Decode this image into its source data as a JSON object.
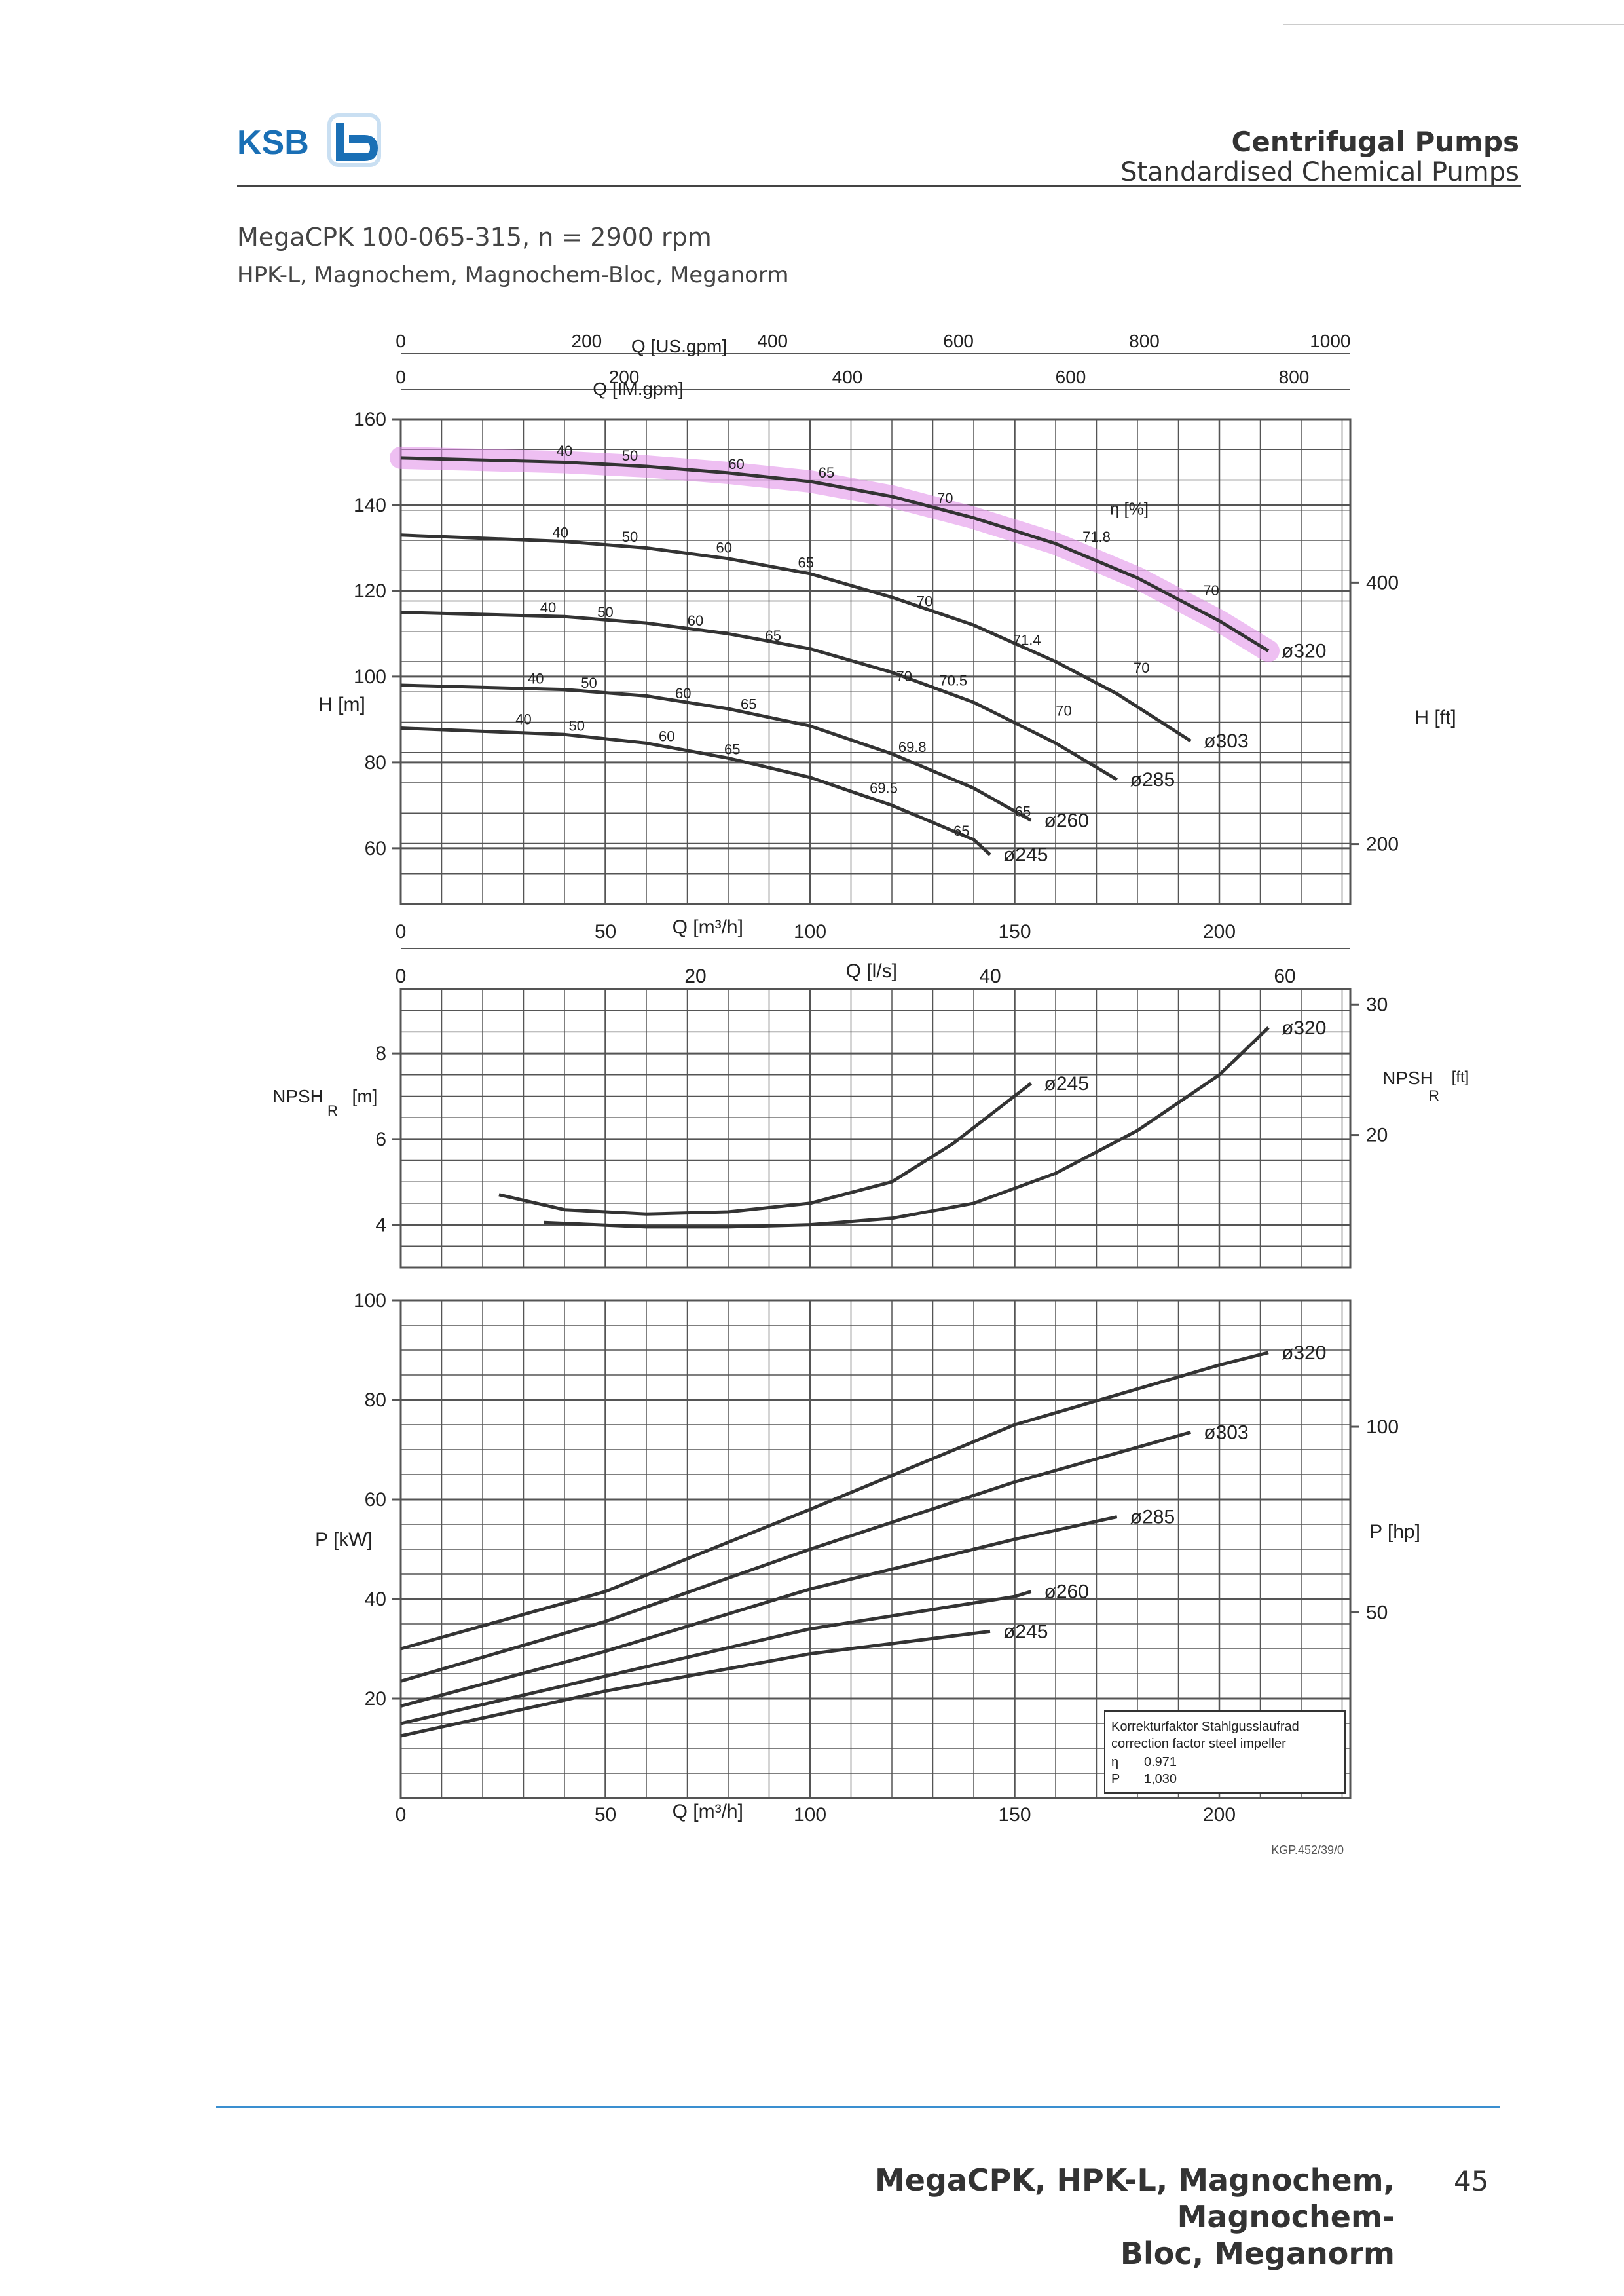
{
  "header": {
    "logo_text": "KSB",
    "title": "Centrifugal Pumps",
    "subtitle": "Standardised Chemical Pumps"
  },
  "model_line": "MegaCPK 100-065-315, n = 2900 rpm",
  "series_line": "HPK-L, Magnochem, Magnochem-Bloc, Meganorm",
  "footer": {
    "title_line1": "MegaCPK, HPK-L, Magnochem, Magnochem-",
    "title_line2": "Bloc, Meganorm",
    "page_number": "45"
  },
  "colors": {
    "curve": "#333333",
    "grid": "#555555",
    "highlight": "#e08ae8"
  },
  "chart_data": [
    {
      "type": "line",
      "name": "head",
      "ylabel": "H [m]",
      "ylabel_right": "H [ft]",
      "xlabel": "Q [m³/h]",
      "xlim": [
        0,
        232
      ],
      "ylim": [
        47,
        160
      ],
      "x_ticks": [
        0,
        50,
        100,
        150,
        200
      ],
      "y_ticks": [
        60,
        80,
        100,
        120,
        140,
        160
      ],
      "right_ticks": [
        {
          "label": "200",
          "value": 60.96
        },
        {
          "label": "400",
          "value": 121.92
        }
      ],
      "top_axis_usgpm": {
        "label": "Q [US.gpm]",
        "ticks": [
          "0",
          "200",
          "400",
          "600",
          "800",
          "1000"
        ],
        "values": [
          0,
          200,
          400,
          600,
          800,
          1000
        ],
        "factor": 0.2271
      },
      "top_axis_imgpm": {
        "label": "Q [IM.gpm]",
        "ticks": [
          "0",
          "200",
          "400",
          "600",
          "800"
        ],
        "values": [
          0,
          200,
          400,
          600,
          800
        ],
        "factor": 0.2728
      },
      "ls_axis": {
        "label": "Q [l/s]",
        "ticks": [
          "0",
          "20",
          "40",
          "60"
        ],
        "values": [
          0,
          20,
          40,
          60
        ],
        "factor": 3.6
      },
      "eta_label": "η [%]",
      "series": [
        {
          "name": "ø320",
          "x": [
            0,
            40,
            60,
            80,
            100,
            120,
            140,
            160,
            180,
            200,
            212
          ],
          "y": [
            151,
            150,
            149,
            147.5,
            145.5,
            142,
            137,
            131,
            123,
            113,
            106
          ]
        },
        {
          "name": "ø303",
          "x": [
            0,
            40,
            60,
            80,
            100,
            120,
            140,
            160,
            175,
            193
          ],
          "y": [
            133,
            131.5,
            130,
            127.5,
            124,
            118.5,
            112,
            103.5,
            96,
            85
          ]
        },
        {
          "name": "ø285",
          "x": [
            0,
            40,
            60,
            80,
            100,
            120,
            140,
            160,
            175
          ],
          "y": [
            115,
            114,
            112.5,
            110,
            106.5,
            101,
            94,
            84.5,
            76
          ]
        },
        {
          "name": "ø260",
          "x": [
            0,
            40,
            60,
            80,
            100,
            120,
            140,
            154
          ],
          "y": [
            98,
            97,
            95.5,
            92.5,
            88.5,
            82,
            74,
            66.5
          ]
        },
        {
          "name": "ø245",
          "x": [
            0,
            40,
            60,
            80,
            100,
            120,
            140,
            144
          ],
          "y": [
            88,
            86.5,
            84.5,
            81,
            76.5,
            70,
            62,
            58.5
          ]
        }
      ],
      "efficiency_labels": [
        {
          "text": "40",
          "x": 40,
          "y": 150.5
        },
        {
          "text": "50",
          "x": 56,
          "y": 149.5
        },
        {
          "text": "60",
          "x": 82,
          "y": 147.5
        },
        {
          "text": "65",
          "x": 104,
          "y": 145.5
        },
        {
          "text": "70",
          "x": 133,
          "y": 139.5
        },
        {
          "text": "40",
          "x": 39,
          "y": 131.5
        },
        {
          "text": "50",
          "x": 56,
          "y": 130.5
        },
        {
          "text": "60",
          "x": 79,
          "y": 128
        },
        {
          "text": "65",
          "x": 99,
          "y": 124.5
        },
        {
          "text": "70",
          "x": 128,
          "y": 115.5
        },
        {
          "text": "71.8",
          "x": 170,
          "y": 130.5
        },
        {
          "text": "71.4",
          "x": 153,
          "y": 106.5
        },
        {
          "text": "40",
          "x": 36,
          "y": 114
        },
        {
          "text": "50",
          "x": 50,
          "y": 113
        },
        {
          "text": "60",
          "x": 72,
          "y": 111
        },
        {
          "text": "65",
          "x": 91,
          "y": 107.5
        },
        {
          "text": "70",
          "x": 123,
          "y": 98
        },
        {
          "text": "70.5",
          "x": 135,
          "y": 97
        },
        {
          "text": "40",
          "x": 33,
          "y": 97.5
        },
        {
          "text": "50",
          "x": 46,
          "y": 96.5
        },
        {
          "text": "60",
          "x": 69,
          "y": 94
        },
        {
          "text": "65",
          "x": 85,
          "y": 91.5
        },
        {
          "text": "69.8",
          "x": 125,
          "y": 81.5
        },
        {
          "text": "70",
          "x": 162,
          "y": 90
        },
        {
          "text": "40",
          "x": 30,
          "y": 88
        },
        {
          "text": "50",
          "x": 43,
          "y": 86.5
        },
        {
          "text": "60",
          "x": 65,
          "y": 84
        },
        {
          "text": "65",
          "x": 81,
          "y": 81
        },
        {
          "text": "69.5",
          "x": 118,
          "y": 72
        },
        {
          "text": "65",
          "x": 152,
          "y": 66.5
        },
        {
          "text": "65",
          "x": 137,
          "y": 62
        },
        {
          "text": "70",
          "x": 198,
          "y": 118
        },
        {
          "text": "70",
          "x": 181,
          "y": 100
        }
      ]
    },
    {
      "type": "line",
      "name": "npsh",
      "ylabel": "NPSH",
      "ylabel_sub": "R",
      "ylabel_unit": "[m]",
      "ylabel_right": "NPSH",
      "ylabel_right_unit": "[ft]",
      "xlim": [
        0,
        232
      ],
      "ylim": [
        3,
        9.5
      ],
      "y_ticks": [
        4,
        6,
        8
      ],
      "right_ticks": [
        {
          "label": "20",
          "value": 6.096
        },
        {
          "label": "30",
          "value": 9.144
        }
      ],
      "series": [
        {
          "name": "ø245",
          "x": [
            24,
            40,
            60,
            80,
            100,
            120,
            135,
            154
          ],
          "y": [
            4.7,
            4.35,
            4.25,
            4.3,
            4.5,
            5.0,
            5.9,
            7.3
          ]
        },
        {
          "name": "ø320",
          "x": [
            35,
            60,
            80,
            100,
            120,
            140,
            160,
            180,
            200,
            212
          ],
          "y": [
            4.05,
            3.95,
            3.95,
            4.0,
            4.15,
            4.5,
            5.2,
            6.2,
            7.5,
            8.6
          ]
        }
      ]
    },
    {
      "type": "line",
      "name": "power",
      "ylabel": "P [kW]",
      "ylabel_right": "P [hp]",
      "xlabel": "Q [m³/h]",
      "xlim": [
        0,
        232
      ],
      "ylim": [
        0,
        100
      ],
      "x_ticks": [
        0,
        50,
        100,
        150,
        200
      ],
      "y_ticks": [
        20,
        40,
        60,
        80,
        100
      ],
      "right_ticks": [
        {
          "label": "50",
          "value": 37.3
        },
        {
          "label": "100",
          "value": 74.6
        }
      ],
      "series": [
        {
          "name": "ø320",
          "x": [
            0,
            50,
            100,
            150,
            200,
            212
          ],
          "y": [
            30,
            41.5,
            58,
            75,
            87,
            89.5
          ]
        },
        {
          "name": "ø303",
          "x": [
            0,
            50,
            100,
            150,
            193
          ],
          "y": [
            23.5,
            35.5,
            50,
            63.5,
            73.5
          ]
        },
        {
          "name": "ø285",
          "x": [
            0,
            50,
            100,
            150,
            175
          ],
          "y": [
            18.5,
            29.5,
            42,
            52,
            56.5
          ]
        },
        {
          "name": "ø260",
          "x": [
            0,
            50,
            100,
            150,
            154
          ],
          "y": [
            15,
            24.5,
            34,
            40.5,
            41.5
          ]
        },
        {
          "name": "ø245",
          "x": [
            0,
            50,
            100,
            144
          ],
          "y": [
            12.5,
            21.5,
            29,
            33.5
          ]
        }
      ],
      "correction_box": {
        "line1": "Korrekturfaktor Stahlgusslaufrad",
        "line2": "correction factor steel impeller",
        "eta_label": "η",
        "eta_value": "0.971",
        "p_label": "P",
        "p_value": "1,030"
      },
      "drawing_code": "KGP.452/39/0"
    }
  ]
}
